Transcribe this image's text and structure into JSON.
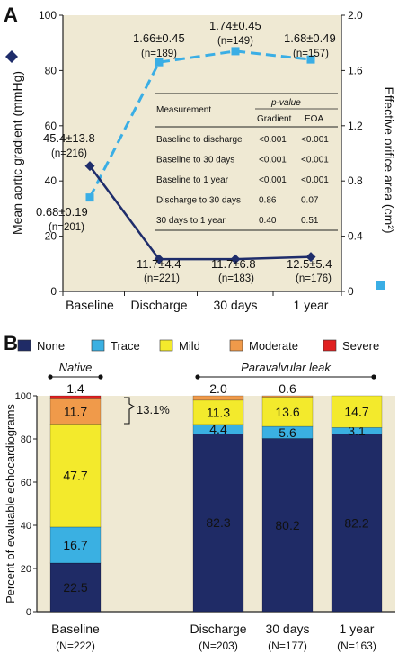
{
  "panel_a": {
    "label": "A",
    "left_axis_label": "Mean aortic gradient (mmHg)",
    "right_axis_label": "Effective orifice area (cm²)",
    "left_ticks": [
      "0",
      "20",
      "40",
      "60",
      "80",
      "100"
    ],
    "right_ticks": [
      "0",
      "0.4",
      "0.8",
      "1.2",
      "1.6",
      "2.0"
    ],
    "annotations": {
      "gradient_values": [
        "45.4±13.8",
        "11.7±4.4",
        "11.7±6.8",
        "12.5±5.4"
      ],
      "gradient_ns": [
        "(n=216)",
        "(n=221)",
        "(n=183)",
        "(n=176)"
      ],
      "eoa_values": [
        "0.68±0.19",
        "1.66±0.45",
        "1.74±0.45",
        "1.68±0.49"
      ],
      "eoa_ns": [
        "(n=201)",
        "(n=189)",
        "(n=149)",
        "(n=157)"
      ]
    },
    "table": {
      "col_measurement": "Measurement",
      "col_pvalue": "p-value",
      "col_gradient": "Gradient",
      "col_eoa": "EOA",
      "rows": [
        {
          "label": "Baseline to discharge",
          "gradient": "<0.001",
          "eoa": "<0.001"
        },
        {
          "label": "Baseline to 30 days",
          "gradient": "<0.001",
          "eoa": "<0.001"
        },
        {
          "label": "Baseline to 1 year",
          "gradient": "<0.001",
          "eoa": "<0.001"
        },
        {
          "label": "Discharge to 30 days",
          "gradient": "0.86",
          "eoa": "0.07"
        },
        {
          "label": "30 days to 1 year",
          "gradient": "0.40",
          "eoa": "0.51"
        }
      ]
    },
    "colors": {
      "gradient": "#1f2d6b",
      "eoa": "#3aaee5",
      "background": "#efe9d3"
    }
  },
  "panel_b": {
    "label": "B",
    "y_axis_label": "Percent of evaluable echocardiograms",
    "y_ticks": [
      "0",
      "20",
      "40",
      "60",
      "80",
      "100"
    ],
    "legend": [
      {
        "name": "None",
        "color": "#1f2b66"
      },
      {
        "name": "Trace",
        "color": "#3ab0e2"
      },
      {
        "name": "Mild",
        "color": "#f3ea2c"
      },
      {
        "name": "Moderate",
        "color": "#f09a4a"
      },
      {
        "name": "Severe",
        "color": "#e02020"
      }
    ],
    "group_native": "Native",
    "group_pvl": "Paravalvular leak",
    "bracket_label": "13.1%",
    "top_labels": [
      "1.4",
      "2.0",
      "0.6",
      ""
    ],
    "x_labels": [
      "Baseline",
      "Discharge",
      "30 days",
      "1 year"
    ],
    "n_labels": [
      "(N=222)",
      "(N=203)",
      "(N=177)",
      "(N=163)"
    ],
    "segment_labels": [
      [
        "22.5",
        "16.7",
        "47.7",
        "11.7",
        ""
      ],
      [
        "82.3",
        "4.4",
        "11.3",
        "",
        ""
      ],
      [
        "80.2",
        "5.6",
        "13.6",
        "",
        ""
      ],
      [
        "82.2",
        "3.1",
        "14.7",
        "",
        ""
      ]
    ],
    "background": "#efe9d3"
  },
  "chart_data": [
    {
      "type": "line",
      "x_categories": [
        "Baseline",
        "Discharge",
        "30 days",
        "1 year"
      ],
      "xlabel": "",
      "ylabel": "Mean aortic gradient (mmHg)",
      "ylim": [
        0,
        100
      ],
      "y2label": "Effective orifice area (cm²)",
      "y2lim": [
        0,
        2.0
      ],
      "grid": false,
      "series": [
        {
          "values": [
            45.4,
            11.7,
            11.7,
            12.5
          ],
          "sd": [
            13.8,
            4.4,
            6.8,
            5.4
          ],
          "n": [
            216,
            221,
            183,
            176
          ],
          "axis": "left",
          "color": "#1f2d6b",
          "marker": "diamond",
          "line_style": "solid"
        },
        {
          "values": [
            0.68,
            1.66,
            1.74,
            1.68
          ],
          "sd": [
            0.19,
            0.45,
            0.45,
            0.49
          ],
          "n": [
            201,
            189,
            149,
            157
          ],
          "axis": "right",
          "color": "#3aaee5",
          "marker": "square",
          "line_style": "dashed"
        }
      ]
    },
    {
      "type": "bar",
      "stacked": true,
      "categories": [
        "Baseline",
        "Discharge",
        "30 days",
        "1 year"
      ],
      "ylabel": "Percent of evaluable echocardiograms",
      "ylim": [
        0,
        100
      ],
      "legend_position": "top",
      "series": [
        {
          "name": "None",
          "color": "#1f2b66",
          "values": [
            22.5,
            82.3,
            80.2,
            82.2
          ]
        },
        {
          "name": "Trace",
          "color": "#3ab0e2",
          "values": [
            16.7,
            4.4,
            5.6,
            3.1
          ]
        },
        {
          "name": "Mild",
          "color": "#f3ea2c",
          "values": [
            47.7,
            11.3,
            13.6,
            14.7
          ]
        },
        {
          "name": "Moderate",
          "color": "#f09a4a",
          "values": [
            11.7,
            2.0,
            0.6,
            0
          ]
        },
        {
          "name": "Severe",
          "color": "#e02020",
          "values": [
            1.4,
            0,
            0,
            0
          ]
        }
      ]
    }
  ]
}
